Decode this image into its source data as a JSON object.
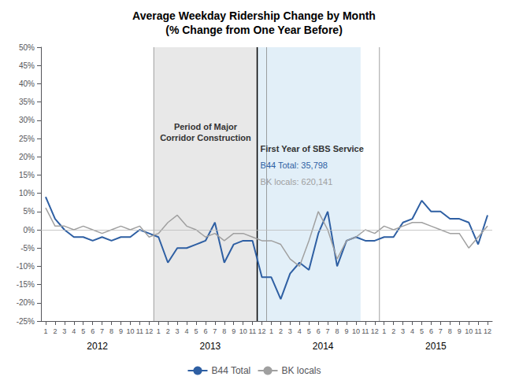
{
  "chart_data": {
    "type": "line",
    "title": "Average Weekday Ridership Change by Month\n(% Change from One Year Before)",
    "categories": [
      "1",
      "2",
      "3",
      "4",
      "5",
      "6",
      "7",
      "8",
      "9",
      "10",
      "11",
      "12",
      "1",
      "2",
      "3",
      "4",
      "5",
      "6",
      "7",
      "8",
      "9",
      "10",
      "11",
      "12",
      "1",
      "2",
      "3",
      "4",
      "5",
      "6",
      "7",
      "8",
      "9",
      "10",
      "11",
      "12",
      "1",
      "2",
      "3",
      "4",
      "5",
      "6",
      "7",
      "8",
      "9",
      "10",
      "11",
      "12"
    ],
    "category_groups": [
      "2012",
      "2013",
      "2014",
      "2015"
    ],
    "series": [
      {
        "name": "B44 Total",
        "color": "#2E5FA3",
        "values": [
          9,
          3,
          0,
          -2,
          -2,
          -3,
          -2,
          -3,
          -2,
          -2,
          0,
          -1,
          -2,
          -9,
          -5,
          -5,
          -4,
          -3,
          2,
          -9,
          -4,
          -3,
          -3,
          -13,
          -13,
          -19,
          -12,
          -9,
          -11,
          -1,
          5,
          -10,
          -3,
          -2,
          -3,
          -3,
          -2,
          -2,
          2,
          3,
          8,
          5,
          5,
          3,
          3,
          2,
          -4,
          4
        ]
      },
      {
        "name": "BK locals",
        "color": "#A0A0A0",
        "values": [
          6,
          1,
          1,
          0,
          1,
          0,
          -1,
          0,
          1,
          0,
          1,
          -2,
          -1,
          2,
          4,
          1,
          0,
          -2,
          -1,
          -3,
          -1,
          -1,
          -2,
          -3,
          -3,
          -4,
          -8,
          -10,
          -3,
          5,
          0,
          -8,
          -3,
          -2,
          0,
          -1,
          1,
          0,
          1,
          2,
          2,
          1,
          0,
          -1,
          -1,
          -5,
          -2,
          1
        ]
      }
    ],
    "ylim": [
      -25,
      50
    ],
    "yticks": [
      {
        "value": -25,
        "label": "-25%"
      },
      {
        "value": -20,
        "label": "-20%"
      },
      {
        "value": -15,
        "label": "-15%"
      },
      {
        "value": -10,
        "label": "-10%"
      },
      {
        "value": -5,
        "label": "-5%"
      },
      {
        "value": 0,
        "label": "0%"
      },
      {
        "value": 5,
        "label": "5%"
      },
      {
        "value": 10,
        "label": "10%"
      },
      {
        "value": 15,
        "label": "15%"
      },
      {
        "value": 20,
        "label": "20%"
      },
      {
        "value": 25,
        "label": "25%"
      },
      {
        "value": 30,
        "label": "30%"
      },
      {
        "value": 35,
        "label": "35%"
      },
      {
        "value": 40,
        "label": "40%"
      },
      {
        "value": 45,
        "label": "45%"
      },
      {
        "value": 50,
        "label": "50%"
      }
    ],
    "grid": false,
    "legend": "bottom",
    "shaded_regions": [
      {
        "start": 12,
        "end": 23,
        "color": "#CCCCCC"
      },
      {
        "start": 23,
        "end": 34,
        "color": "#D6E8F5"
      }
    ],
    "vertical_line": {
      "at": 23,
      "color": "#000000"
    },
    "annotations": [
      {
        "text": "Period of Major\nCorridor Construction"
      },
      {
        "text": "First Year of SBS Service"
      },
      {
        "text": "B44 Total: 35,798",
        "color": "#2E5FA3"
      },
      {
        "text": "BK locals: 620,141",
        "color": "#A0A0A0"
      }
    ]
  }
}
